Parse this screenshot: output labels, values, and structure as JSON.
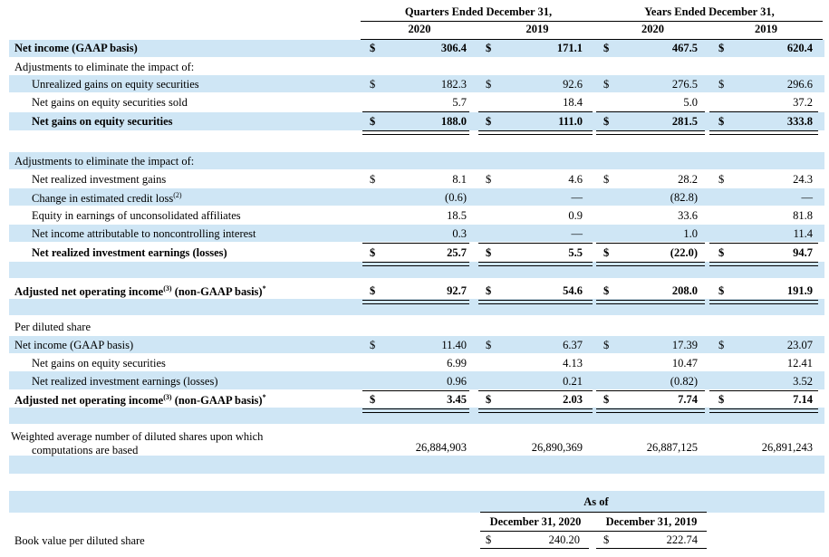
{
  "headers": {
    "quarters": "Quarters Ended December 31,",
    "years": "Years Ended December 31,",
    "cols": [
      "2020",
      "2019",
      "2020",
      "2019"
    ]
  },
  "rows": [
    {
      "label": "Net income (GAAP basis)",
      "bold": true,
      "indent": 0,
      "dollar": true,
      "values": [
        "306.4",
        "171.1",
        "467.5",
        "620.4"
      ]
    },
    {
      "label": "Adjustments to eliminate the impact of:",
      "bold": false,
      "indent": 0,
      "dollar": false,
      "values": []
    },
    {
      "label": "Unrealized gains on equity securities",
      "bold": false,
      "indent": 1,
      "dollar": true,
      "values": [
        "182.3",
        "92.6",
        "276.5",
        "296.6"
      ]
    },
    {
      "label": "Net gains on equity securities sold",
      "bold": false,
      "indent": 1,
      "dollar": false,
      "values": [
        "5.7",
        "18.4",
        "5.0",
        "37.2"
      ]
    },
    {
      "label": "Net gains on equity securities",
      "bold": true,
      "indent": 1,
      "dollar": true,
      "values": [
        "188.0",
        "111.0",
        "281.5",
        "333.8"
      ]
    },
    {
      "label": "Adjustments to eliminate the impact of:",
      "bold": false,
      "indent": 0,
      "dollar": false,
      "values": []
    },
    {
      "label": "Net realized investment gains",
      "bold": false,
      "indent": 1,
      "dollar": true,
      "values": [
        "8.1",
        "4.6",
        "28.2",
        "24.3"
      ]
    },
    {
      "label": "Change in estimated credit loss",
      "sup": "(2)",
      "bold": false,
      "indent": 1,
      "dollar": false,
      "values": [
        "(0.6)",
        "—",
        "(82.8)",
        "—"
      ]
    },
    {
      "label": "Equity in earnings of unconsolidated affiliates",
      "bold": false,
      "indent": 1,
      "dollar": false,
      "values": [
        "18.5",
        "0.9",
        "33.6",
        "81.8"
      ]
    },
    {
      "label": "Net income attributable to noncontrolling interest",
      "bold": false,
      "indent": 1,
      "dollar": false,
      "values": [
        "0.3",
        "—",
        "1.0",
        "11.4"
      ]
    },
    {
      "label": "Net realized investment earnings (losses)",
      "bold": true,
      "indent": 1,
      "dollar": true,
      "values": [
        "25.7",
        "5.5",
        "(22.0)",
        "94.7"
      ]
    },
    {
      "label": "Adjusted net operating income",
      "sup": "(3)",
      "suffix": " (non-GAAP basis)",
      "sup2": "*",
      "bold": true,
      "indent": 0,
      "dollar": true,
      "values": [
        "92.7",
        "54.6",
        "208.0",
        "191.9"
      ]
    },
    {
      "label": "Per diluted share",
      "bold": false,
      "indent": 0,
      "dollar": false,
      "values": []
    },
    {
      "label": "Net income (GAAP basis)",
      "bold": false,
      "indent": 0,
      "dollar": true,
      "values": [
        "11.40",
        "6.37",
        "17.39",
        "23.07"
      ]
    },
    {
      "label": "Net gains on equity securities",
      "bold": false,
      "indent": 1,
      "dollar": false,
      "values": [
        "6.99",
        "4.13",
        "10.47",
        "12.41"
      ]
    },
    {
      "label": "Net realized investment earnings (losses)",
      "bold": false,
      "indent": 1,
      "dollar": false,
      "values": [
        "0.96",
        "0.21",
        "(0.82)",
        "3.52"
      ]
    },
    {
      "label": "Adjusted net operating income",
      "sup": "(3)",
      "suffix": " (non-GAAP basis)",
      "sup2": "*",
      "bold": true,
      "indent": 0,
      "dollar": true,
      "values": [
        "3.45",
        "2.03",
        "7.74",
        "7.14"
      ]
    },
    {
      "label": "Weighted average number of diluted shares upon which",
      "label2": "computations are based",
      "bold": false,
      "indent": 0,
      "dollar": false,
      "values": [
        "26,884,903",
        "26,890,369",
        "26,887,125",
        "26,891,243"
      ]
    }
  ],
  "currency": "$",
  "book_value": {
    "as_of": "As of",
    "cols": [
      "December 31, 2020",
      "December 31, 2019"
    ],
    "label": "Book value per diluted share",
    "values": [
      "240.20",
      "222.74"
    ]
  }
}
